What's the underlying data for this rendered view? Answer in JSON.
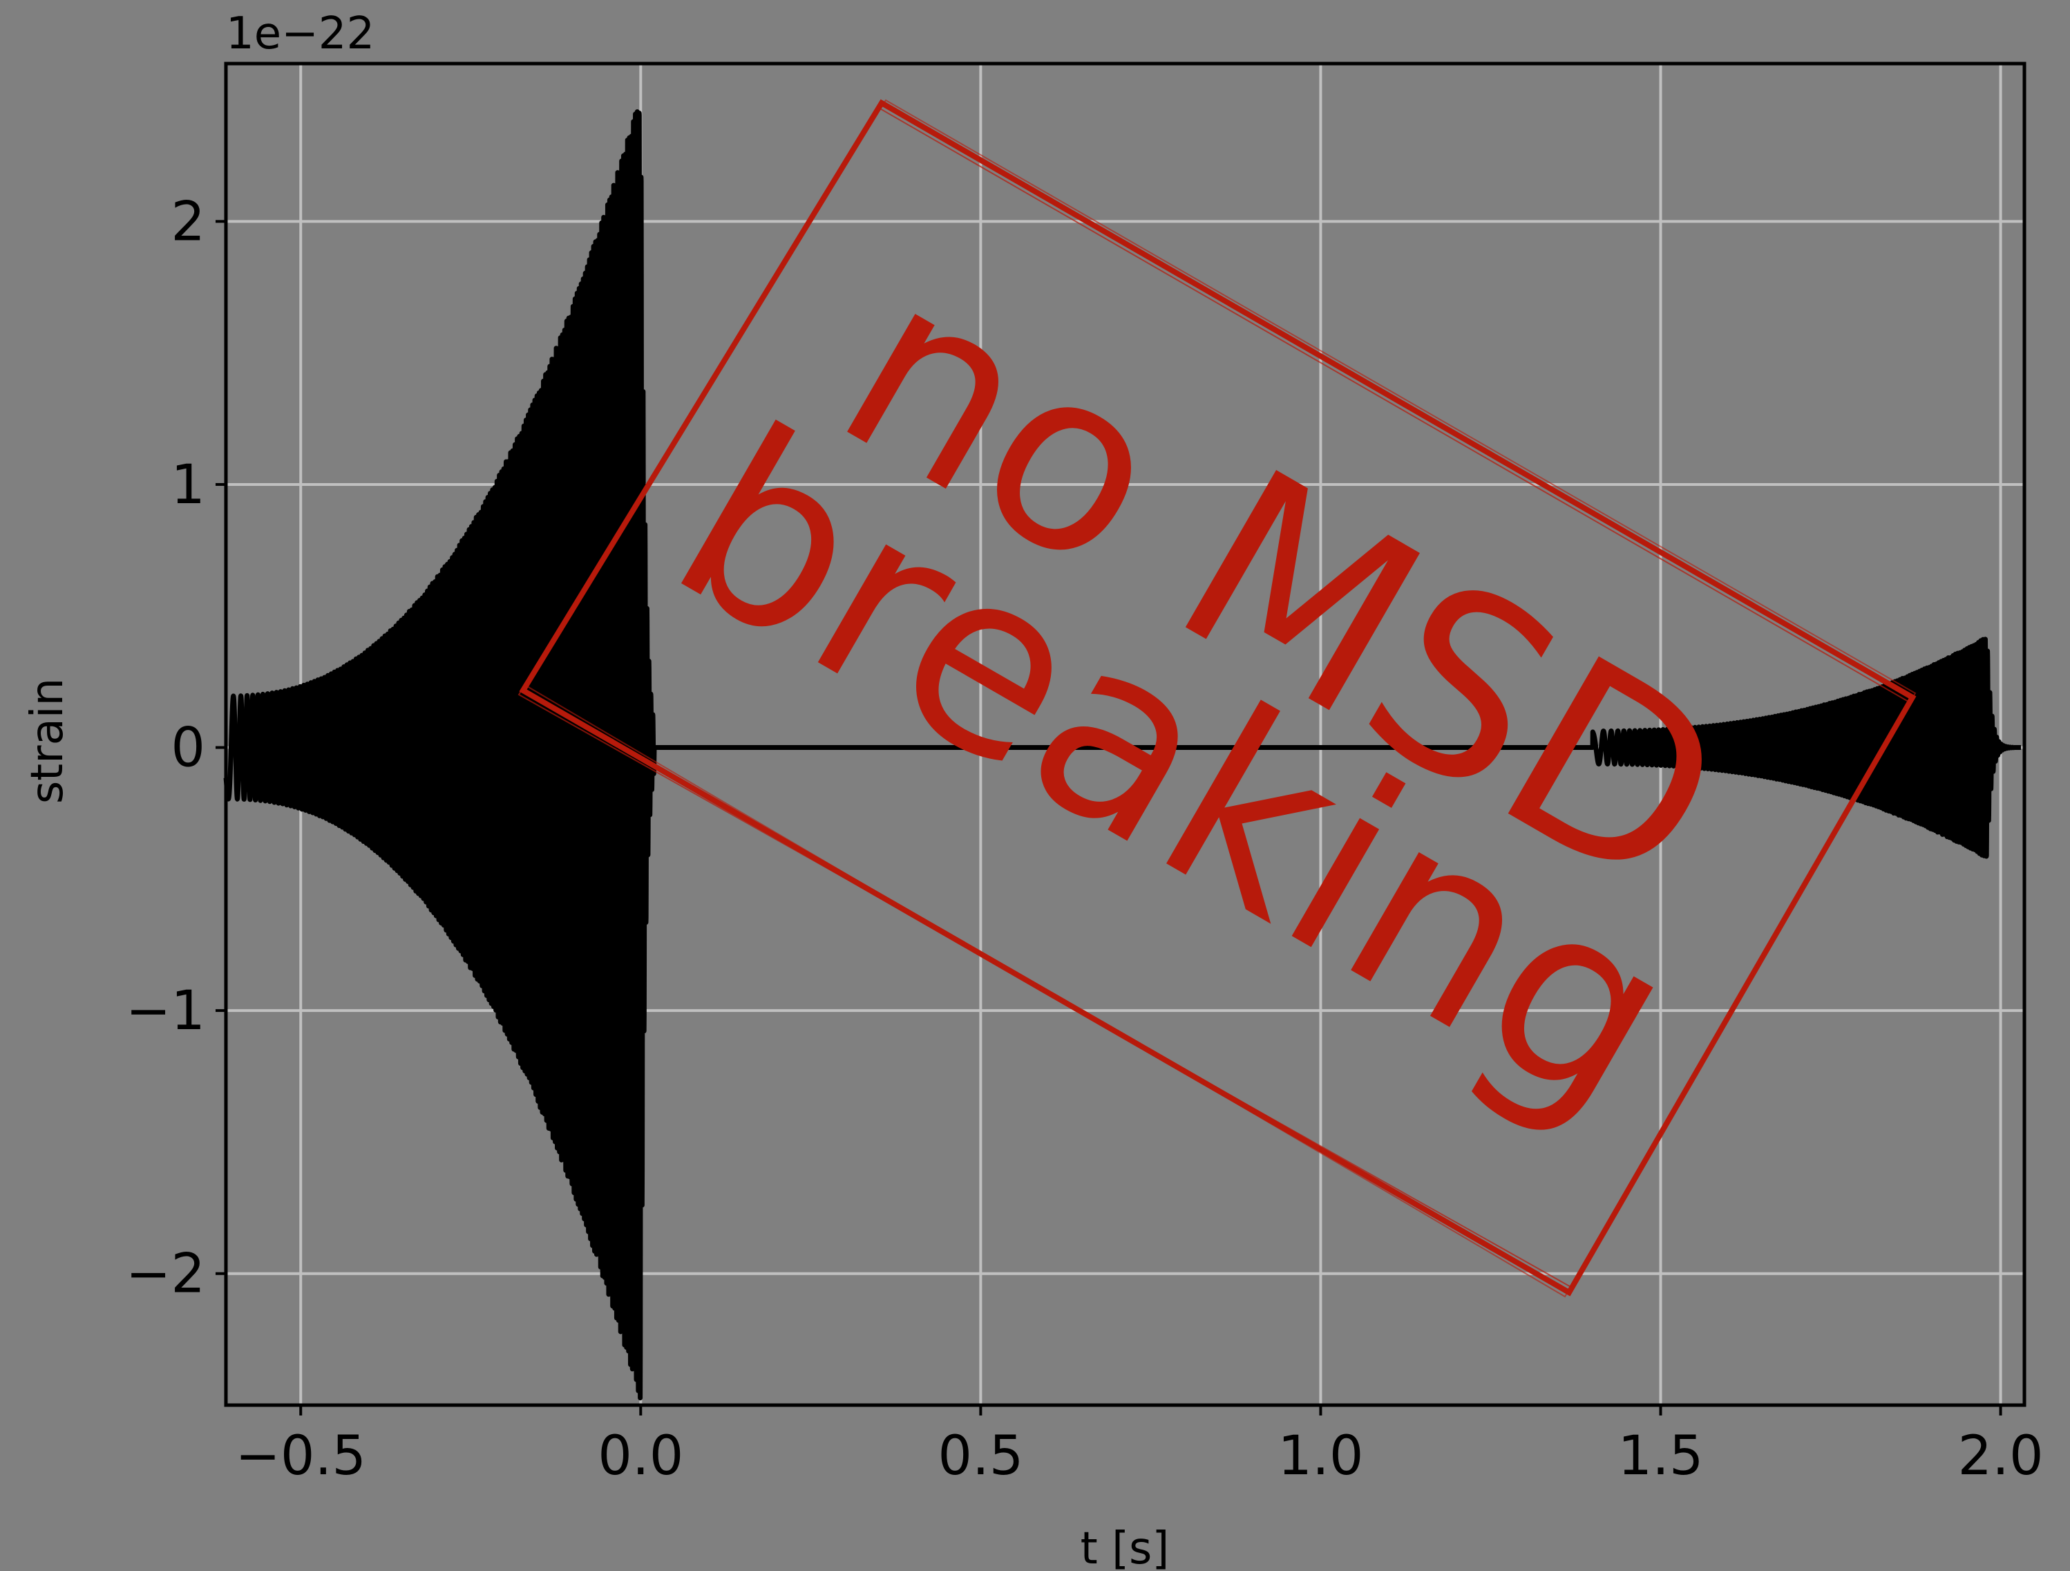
{
  "chart_data": {
    "type": "line",
    "title": "",
    "xlabel": "t [s]",
    "ylabel": "strain",
    "y_offset_label": "1e−22",
    "y_scale": 1e-22,
    "xlim": [
      -0.61,
      2.035
    ],
    "ylim": [
      -2.5,
      2.6
    ],
    "grid": true,
    "x_ticks": [
      -0.5,
      0.0,
      0.5,
      1.0,
      1.5,
      2.0
    ],
    "x_tick_labels": [
      "−0.5",
      "0.0",
      "0.5",
      "1.0",
      "1.5",
      "2.0"
    ],
    "y_ticks": [
      -2,
      -1,
      0,
      1,
      2
    ],
    "y_tick_labels": [
      "−2",
      "−1",
      "0",
      "1",
      "2"
    ],
    "series": [
      {
        "color": "#000000",
        "description": "chirp waveform, strain in units of 1e-22",
        "bursts": [
          {
            "t_start": -0.61,
            "t_merge": 0.0,
            "t_end": 0.02,
            "peak_amplitude": 2.48,
            "min_amplitude": 0.05,
            "f_start": 25,
            "f_merge": 350,
            "decay": 0.006
          },
          {
            "t_start": 1.4,
            "t_merge": 1.98,
            "t_end": 2.02,
            "peak_amplitude": 0.42,
            "min_amplitude": 0.04,
            "f_start": 25,
            "f_merge": 300,
            "decay": 0.006
          }
        ]
      }
    ]
  },
  "stamp": {
    "line1": "no MSD",
    "line2": "breaking",
    "color": "#b71a0b"
  },
  "colors": {
    "background": "#808080",
    "grid": "#c0c0c0",
    "axes": "#000000",
    "line": "#000000"
  }
}
